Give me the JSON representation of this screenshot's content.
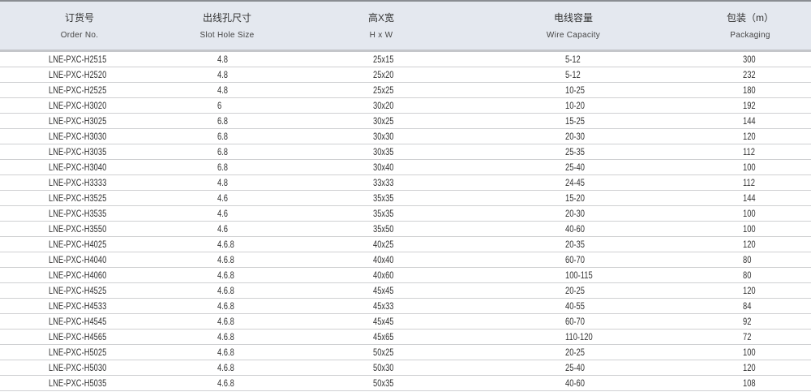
{
  "table": {
    "headers": [
      {
        "cn": "订货号",
        "en": "Order No."
      },
      {
        "cn": "出线孔尺寸",
        "en": "Slot Hole Size"
      },
      {
        "cn": "高X宽",
        "en": "H x W"
      },
      {
        "cn": "电线容量",
        "en": "Wire Capacity"
      },
      {
        "cn": "包装（m）",
        "en": "Packaging"
      }
    ],
    "rows": [
      [
        "LNE-PXC-H2515",
        "4.8",
        "25x15",
        "5-12",
        "300"
      ],
      [
        "LNE-PXC-H2520",
        "4.8",
        "25x20",
        "5-12",
        "232"
      ],
      [
        "LNE-PXC-H2525",
        "4.8",
        "25x25",
        "10-25",
        "180"
      ],
      [
        "LNE-PXC-H3020",
        "6",
        "30x20",
        "10-20",
        "192"
      ],
      [
        "LNE-PXC-H3025",
        "6.8",
        "30x25",
        "15-25",
        "144"
      ],
      [
        "LNE-PXC-H3030",
        "6.8",
        "30x30",
        "20-30",
        "120"
      ],
      [
        "LNE-PXC-H3035",
        "6.8",
        "30x35",
        "25-35",
        "112"
      ],
      [
        "LNE-PXC-H3040",
        "6.8",
        "30x40",
        "25-40",
        "100"
      ],
      [
        "LNE-PXC-H3333",
        "4.8",
        "33x33",
        "24-45",
        "112"
      ],
      [
        "LNE-PXC-H3525",
        "4.6",
        "35x35",
        "15-20",
        "144"
      ],
      [
        "LNE-PXC-H3535",
        "4.6",
        "35x35",
        "20-30",
        "100"
      ],
      [
        "LNE-PXC-H3550",
        "4.6",
        "35x50",
        "40-60",
        "100"
      ],
      [
        "LNE-PXC-H4025",
        "4.6.8",
        "40x25",
        "20-35",
        "120"
      ],
      [
        "LNE-PXC-H4040",
        "4.6.8",
        "40x40",
        "60-70",
        "80"
      ],
      [
        "LNE-PXC-H4060",
        "4.6.8",
        "40x60",
        "100-115",
        "80"
      ],
      [
        "LNE-PXC-H4525",
        "4.6.8",
        "45x45",
        "20-25",
        "120"
      ],
      [
        "LNE-PXC-H4533",
        "4.6.8",
        "45x33",
        "40-55",
        "84"
      ],
      [
        "LNE-PXC-H4545",
        "4.6.8",
        "45x45",
        "60-70",
        "92"
      ],
      [
        "LNE-PXC-H4565",
        "4.6.8",
        "45x65",
        "110-120",
        "72"
      ],
      [
        "LNE-PXC-H5025",
        "4.6.8",
        "50x25",
        "20-25",
        "100"
      ],
      [
        "LNE-PXC-H5030",
        "4.6.8",
        "50x30",
        "25-40",
        "120"
      ],
      [
        "LNE-PXC-H5035",
        "4.6.8",
        "50x35",
        "40-60",
        "108"
      ]
    ]
  }
}
